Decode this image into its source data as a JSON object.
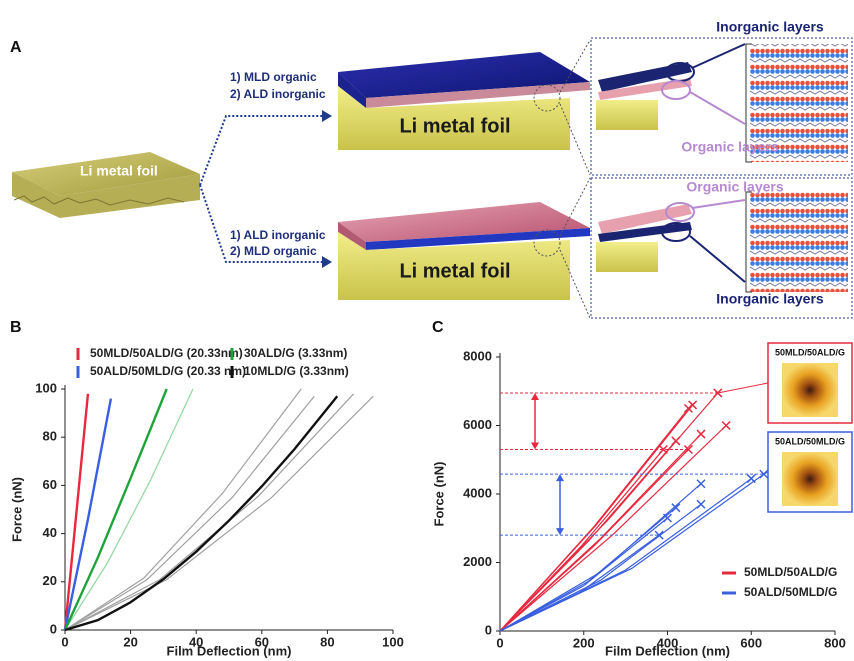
{
  "diagram": {
    "label": "A",
    "source_foil": "Li metal foil",
    "routes": [
      {
        "steps": [
          "1) MLD organic",
          "2) ALD inorganic"
        ],
        "foil": "Li metal foil",
        "top_label": "Inorganic layers",
        "bottom_label": "Organic layers"
      },
      {
        "steps": [
          "1) ALD inorganic",
          "2) MLD organic"
        ],
        "foil": "Li metal foil",
        "top_label": "Organic layers",
        "bottom_label": "Inorganic layers"
      }
    ]
  },
  "chart_data": [
    {
      "panel": "B",
      "type": "line",
      "x_label": "Film Deflection (nm)",
      "y_label": "Force (nN)",
      "xlim": [
        0,
        100
      ],
      "xticks": [
        0,
        20,
        40,
        60,
        80,
        100
      ],
      "ylim": [
        0,
        100
      ],
      "yticks": [
        0,
        20,
        40,
        60,
        80,
        100
      ],
      "legend": "top",
      "series": [
        {
          "name": "50MLD/50ALD/G (20.33nm)",
          "color": "#e8283f",
          "x": [
            0,
            3.5,
            7
          ],
          "values": [
            0,
            49,
            98
          ]
        },
        {
          "name": "50ALD/50MLD/G (20.33 nm)",
          "color": "#3a5fe0",
          "x": [
            0,
            7,
            14
          ],
          "values": [
            0,
            46,
            96
          ]
        },
        {
          "name": "30ALD/G (3.33nm)",
          "color": "#1ea33a",
          "x": [
            0,
            10,
            20,
            31
          ],
          "values": [
            0,
            30,
            63,
            100
          ],
          "replicate_color": "#8fd6a0",
          "replicates": [
            {
              "x": [
                0,
                13,
                26,
                39
              ],
              "values": [
                0,
                28,
                62,
                100
              ]
            }
          ]
        },
        {
          "name": "10MLD/G (3.33nm)",
          "color": "#111111",
          "x": [
            0,
            10,
            20,
            30,
            40,
            50,
            60,
            70,
            83
          ],
          "values": [
            0,
            4.1,
            11.5,
            21.1,
            32.5,
            45.4,
            59.6,
            75.1,
            97
          ],
          "replicate_color": "#a0a0a0",
          "replicates": [
            {
              "x": [
                0,
                24,
                48,
                72
              ],
              "values": [
                0,
                21.5,
                56.7,
                100
              ]
            },
            {
              "x": [
                0,
                25,
                51,
                76
              ],
              "values": [
                0,
                20.9,
                55,
                97
              ]
            },
            {
              "x": [
                0,
                29,
                59,
                88
              ],
              "values": [
                0,
                21,
                55.6,
                98
              ]
            },
            {
              "x": [
                0,
                31,
                63,
                94
              ],
              "values": [
                0,
                20.9,
                55,
                97
              ]
            }
          ]
        }
      ]
    },
    {
      "panel": "C",
      "type": "line",
      "x_label": "Film Deflection (nm)",
      "y_label": "Force (nN)",
      "xlim": [
        0,
        800
      ],
      "xticks": [
        0,
        200,
        400,
        600,
        800
      ],
      "ylim": [
        0,
        8000
      ],
      "yticks": [
        0,
        2000,
        4000,
        6000,
        8000
      ],
      "legend": "lower right",
      "marker": "x",
      "range_arrow": true,
      "series": [
        {
          "name": "50MLD/50ALD/G",
          "color": "#e8283f",
          "inset_label": "50MLD/50ALD/G",
          "curves": [
            {
              "x": [
                0,
                260,
                520
              ],
              "values": [
                0,
                3270,
                6950
              ]
            },
            {
              "x": [
                0,
                230,
                460
              ],
              "values": [
                0,
                3100,
                6600
              ]
            },
            {
              "x": [
                0,
                225,
                450
              ],
              "values": [
                0,
                3055,
                6500
              ]
            },
            {
              "x": [
                0,
                270,
                540
              ],
              "values": [
                0,
                2820,
                6000
              ]
            },
            {
              "x": [
                0,
                240,
                480
              ],
              "values": [
                0,
                2700,
                5750
              ]
            },
            {
              "x": [
                0,
                210,
                420
              ],
              "values": [
                0,
                2610,
                5550
              ]
            },
            {
              "x": [
                0,
                225,
                450
              ],
              "values": [
                0,
                2490,
                5300
              ]
            },
            {
              "x": [
                0,
                195,
                390
              ],
              "values": [
                0,
                2490,
                5300
              ]
            }
          ]
        },
        {
          "name": "50ALD/50MLD/G",
          "color": "#3a5fe0",
          "inset_label": "50ALD/50MLD/G",
          "curves": [
            {
              "x": [
                0,
                315,
                630
              ],
              "values": [
                0,
                1830,
                4580
              ]
            },
            {
              "x": [
                0,
                300,
                600
              ],
              "values": [
                0,
                1780,
                4450
              ]
            },
            {
              "x": [
                0,
                240,
                480
              ],
              "values": [
                0,
                1720,
                4300
              ]
            },
            {
              "x": [
                0,
                210,
                420
              ],
              "values": [
                0,
                1440,
                3600
              ]
            },
            {
              "x": [
                0,
                200,
                400
              ],
              "values": [
                0,
                1320,
                3300
              ]
            },
            {
              "x": [
                0,
                240,
                480
              ],
              "values": [
                0,
                1480,
                3700
              ]
            },
            {
              "x": [
                0,
                190,
                380
              ],
              "values": [
                0,
                1120,
                2800
              ]
            }
          ]
        }
      ]
    }
  ]
}
